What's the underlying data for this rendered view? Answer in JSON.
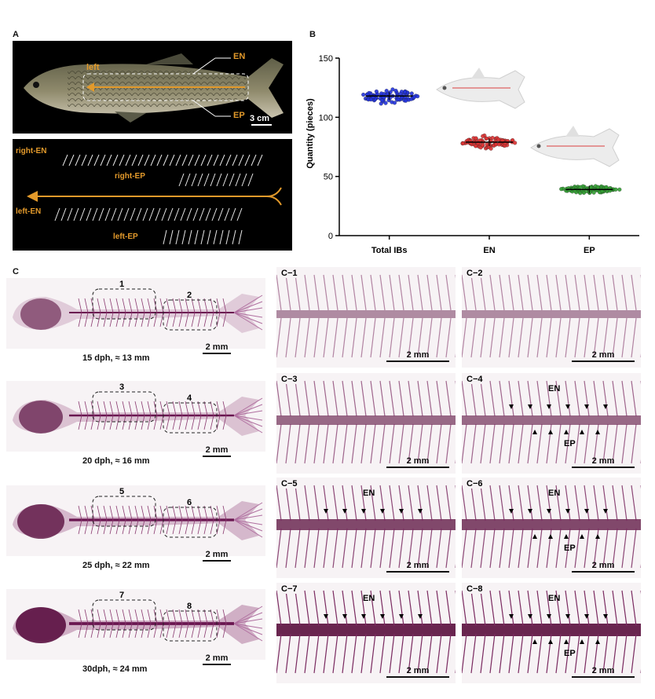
{
  "panelA": {
    "label": "A",
    "photo": {
      "callout_left": "left",
      "callout_en": "EN",
      "callout_ep": "EP",
      "scale": "3 cm"
    },
    "bones": {
      "right_en": "right-EN",
      "right_ep": "right-EP",
      "left_en": "left-EN",
      "left_ep": "left-EP"
    }
  },
  "panelB": {
    "label": "B"
  },
  "chart_data": {
    "type": "scatter",
    "categories": [
      "Total IBs",
      "EN",
      "EP"
    ],
    "ylabel": "Quantity (pieces)",
    "xlabel": "",
    "ylim": [
      0,
      150
    ],
    "yticks": [
      0,
      50,
      100,
      150
    ],
    "series": [
      {
        "category": "Total IBs",
        "mean": 118,
        "min": 110,
        "max": 126,
        "color": "#2233dd"
      },
      {
        "category": "EN",
        "mean": 79,
        "min": 72,
        "max": 86,
        "color": "#dd3333"
      },
      {
        "category": "EP",
        "mean": 39,
        "min": 35,
        "max": 43,
        "color": "#33a033"
      }
    ],
    "grid": false
  },
  "panelC": {
    "label": "C",
    "specimens": [
      {
        "caption": "15 dph, ≈ 13 mm",
        "scale": "2 mm",
        "box1": "1",
        "box2": "2"
      },
      {
        "caption": "20 dph, ≈ 16 mm",
        "scale": "2 mm",
        "box1": "3",
        "box2": "4"
      },
      {
        "caption": "25 dph, ≈ 22 mm",
        "scale": "2 mm",
        "box1": "5",
        "box2": "6"
      },
      {
        "caption": "30dph, ≈ 24 mm",
        "scale": "2 mm",
        "box1": "7",
        "box2": "8"
      }
    ],
    "closeups": [
      {
        "label": "C−1",
        "scale": "2 mm",
        "en": "",
        "ep": ""
      },
      {
        "label": "C−2",
        "scale": "2 mm",
        "en": "",
        "ep": ""
      },
      {
        "label": "C−3",
        "scale": "2 mm",
        "en": "",
        "ep": ""
      },
      {
        "label": "C−4",
        "scale": "2 mm",
        "en": "EN",
        "ep": "EP"
      },
      {
        "label": "C−5",
        "scale": "2 mm",
        "en": "EN",
        "ep": ""
      },
      {
        "label": "C−6",
        "scale": "2 mm",
        "en": "EN",
        "ep": "EP"
      },
      {
        "label": "C−7",
        "scale": "2 mm",
        "en": "EN",
        "ep": ""
      },
      {
        "label": "C−8",
        "scale": "2 mm",
        "en": "EN",
        "ep": "EP"
      }
    ]
  }
}
